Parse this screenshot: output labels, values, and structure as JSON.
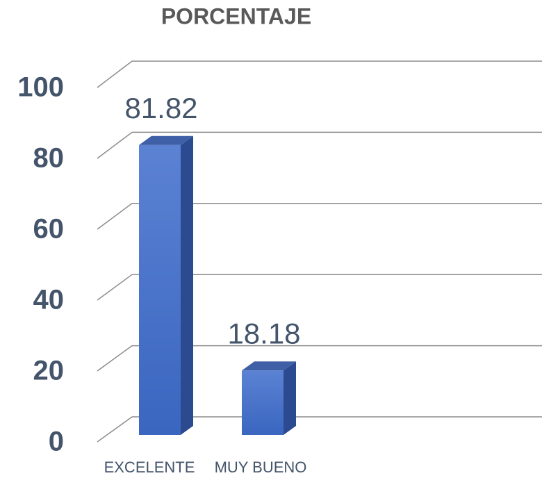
{
  "chart_data": {
    "type": "bar3d",
    "title": "PORCENTAJE",
    "categories": [
      "EXCELENTE",
      "MUY BUENO"
    ],
    "values": [
      81.82,
      18.18
    ],
    "color": "#4472c4",
    "ylim": [
      0,
      100
    ],
    "yticks": [
      0,
      20,
      40,
      60,
      80,
      100
    ],
    "grid": true
  }
}
